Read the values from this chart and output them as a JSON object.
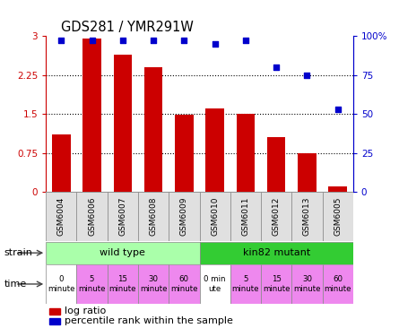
{
  "title": "GDS281 / YMR291W",
  "samples": [
    "GSM6004",
    "GSM6006",
    "GSM6007",
    "GSM6008",
    "GSM6009",
    "GSM6010",
    "GSM6011",
    "GSM6012",
    "GSM6013",
    "GSM6005"
  ],
  "log_ratio": [
    1.1,
    2.95,
    2.65,
    2.4,
    1.48,
    1.6,
    1.5,
    1.05,
    0.75,
    0.1
  ],
  "percentile": [
    97,
    97,
    97,
    97,
    97,
    95,
    97,
    80,
    75,
    53
  ],
  "bar_color": "#cc0000",
  "dot_color": "#0000cc",
  "ylim_left": [
    0,
    3
  ],
  "ylim_right": [
    0,
    100
  ],
  "yticks_left": [
    0,
    0.75,
    1.5,
    2.25,
    3.0
  ],
  "ytick_labels_left": [
    "0",
    "0.75",
    "1.5",
    "2.25",
    "3"
  ],
  "yticks_right": [
    0,
    25,
    50,
    75,
    100
  ],
  "ytick_labels_right": [
    "0",
    "25",
    "50",
    "75",
    "100%"
  ],
  "strain_labels": [
    "wild type",
    "kin82 mutant"
  ],
  "strain_colors": [
    "#aaffaa",
    "#33cc33"
  ],
  "time_labels": [
    "0\nminute",
    "5\nminute",
    "15\nminute",
    "30\nminute",
    "60\nminute",
    "0 min\nute",
    "5\nminute",
    "15\nminute",
    "30\nminute",
    "60\nminute"
  ],
  "time_colors": [
    "#ffffff",
    "#ee88ee",
    "#ee88ee",
    "#ee88ee",
    "#ee88ee",
    "#ffffff",
    "#ee88ee",
    "#ee88ee",
    "#ee88ee",
    "#ee88ee"
  ],
  "legend_items": [
    "log ratio",
    "percentile rank within the sample"
  ],
  "bg_color": "#ffffff",
  "axis_color_left": "#cc0000",
  "axis_color_right": "#0000cc",
  "grid_yticks": [
    0.75,
    1.5,
    2.25
  ]
}
